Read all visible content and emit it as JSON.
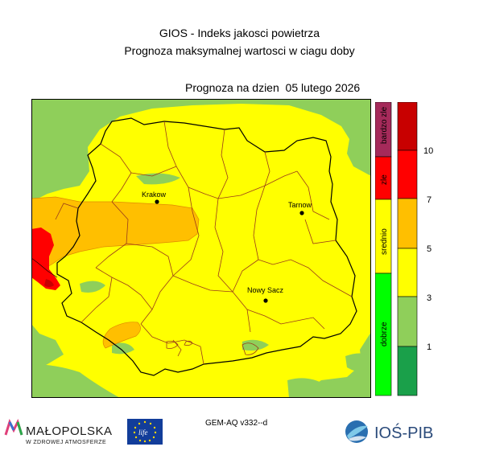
{
  "title_line1": "GIOS - Indeks jakosci powietrza",
  "title_line2": "Prognoza maksymalnej wartosci w ciagu doby",
  "forecast_prefix": "Prognoza na dzien",
  "forecast_date": "05 lutego 2026",
  "model_version": "GEM-AQ v332--d",
  "cities": [
    {
      "name": "Krakow"
    },
    {
      "name": "Tarnow"
    },
    {
      "name": "Nowy Sacz"
    }
  ],
  "legend": {
    "categories": [
      "dobrze",
      "srednio",
      "zle",
      "bardzo zle"
    ],
    "category_colors": [
      "#00ff00",
      "#ffff00",
      "#ff0000",
      "#a52a5a"
    ],
    "levels": [
      "1",
      "3",
      "5",
      "7",
      "10"
    ],
    "level_colors": [
      "#1aa04a",
      "#8fcf5a",
      "#ffff00",
      "#ffbf00",
      "#ff0000",
      "#c80000"
    ]
  },
  "map_colors": {
    "good": "#8fcf5a",
    "moderate": "#ffff00",
    "poor": "#ffbf00",
    "bad": "#ff0000",
    "very_bad": "#c80000"
  },
  "logos": {
    "malopolska_name": "MAŁOPOLSKA",
    "malopolska_slogan": "W ZDROWEJ ATMOSFERZE",
    "eu_text": "life",
    "ios_name": "IOŚ-PIB"
  }
}
